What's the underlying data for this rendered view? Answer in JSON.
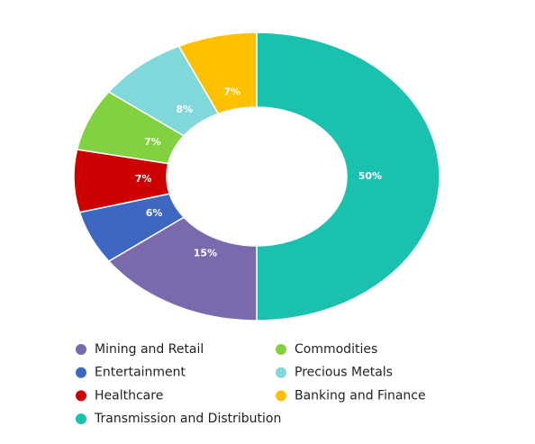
{
  "chart_data": {
    "type": "donut",
    "categories": [
      "Transmission and Distribution",
      "Mining and Retail",
      "Entertainment",
      "Healthcare",
      "Commodities",
      "Precious Metals",
      "Banking and Finance"
    ],
    "values": [
      50,
      15,
      6,
      7,
      7,
      8,
      7
    ],
    "value_labels": [
      "50%",
      "15%",
      "6%",
      "7%",
      "7%",
      "8%",
      "7%"
    ],
    "colors": [
      "#19c1ae",
      "#7a69ad",
      "#3d67c0",
      "#cc0000",
      "#82d141",
      "#80d8db",
      "#ffc000"
    ],
    "legend": "bottom"
  }
}
